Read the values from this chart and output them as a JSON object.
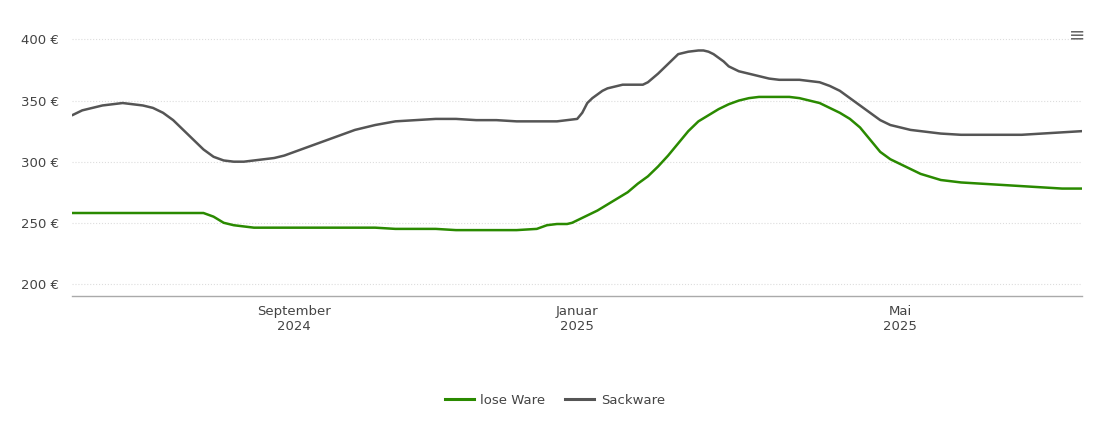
{
  "background_color": "#ffffff",
  "plot_bg_color": "#ffffff",
  "grid_color": "#dddddd",
  "line_lose_color": "#2a8a00",
  "line_sack_color": "#555555",
  "yticks": [
    200,
    250,
    300,
    350,
    400
  ],
  "xtick_labels": [
    [
      "September\n2024",
      0.22
    ],
    [
      "Januar\n2025",
      0.5
    ],
    [
      "Mai\n2025",
      0.82
    ]
  ],
  "legend_labels": [
    "lose Ware",
    "Sackware"
  ],
  "xlim": [
    0.0,
    1.0
  ],
  "ylim": [
    190,
    415
  ],
  "lose_x": [
    0.0,
    0.01,
    0.02,
    0.04,
    0.06,
    0.08,
    0.1,
    0.13,
    0.14,
    0.15,
    0.16,
    0.17,
    0.18,
    0.19,
    0.2,
    0.21,
    0.22,
    0.24,
    0.26,
    0.28,
    0.3,
    0.32,
    0.34,
    0.36,
    0.38,
    0.4,
    0.42,
    0.44,
    0.46,
    0.47,
    0.48,
    0.49,
    0.495,
    0.5,
    0.51,
    0.52,
    0.53,
    0.54,
    0.55,
    0.56,
    0.57,
    0.58,
    0.59,
    0.6,
    0.61,
    0.62,
    0.63,
    0.64,
    0.65,
    0.66,
    0.67,
    0.68,
    0.69,
    0.7,
    0.71,
    0.72,
    0.73,
    0.74,
    0.75,
    0.76,
    0.77,
    0.78,
    0.79,
    0.8,
    0.81,
    0.82,
    0.83,
    0.84,
    0.86,
    0.88,
    0.9,
    0.92,
    0.94,
    0.96,
    0.98,
    1.0
  ],
  "lose_y": [
    258,
    258,
    258,
    258,
    258,
    258,
    258,
    258,
    255,
    250,
    248,
    247,
    246,
    246,
    246,
    246,
    246,
    246,
    246,
    246,
    246,
    245,
    245,
    245,
    244,
    244,
    244,
    244,
    245,
    248,
    249,
    249,
    250,
    252,
    256,
    260,
    265,
    270,
    275,
    282,
    288,
    296,
    305,
    315,
    325,
    333,
    338,
    343,
    347,
    350,
    352,
    353,
    353,
    353,
    353,
    352,
    350,
    348,
    344,
    340,
    335,
    328,
    318,
    308,
    302,
    298,
    294,
    290,
    285,
    283,
    282,
    281,
    280,
    279,
    278,
    278
  ],
  "sack_x": [
    0.0,
    0.01,
    0.02,
    0.03,
    0.04,
    0.05,
    0.06,
    0.07,
    0.08,
    0.09,
    0.1,
    0.11,
    0.12,
    0.13,
    0.14,
    0.15,
    0.16,
    0.17,
    0.18,
    0.19,
    0.2,
    0.21,
    0.22,
    0.24,
    0.26,
    0.28,
    0.3,
    0.32,
    0.34,
    0.36,
    0.38,
    0.4,
    0.42,
    0.44,
    0.46,
    0.48,
    0.49,
    0.5,
    0.505,
    0.51,
    0.515,
    0.52,
    0.525,
    0.53,
    0.535,
    0.54,
    0.545,
    0.55,
    0.555,
    0.56,
    0.565,
    0.57,
    0.58,
    0.59,
    0.6,
    0.61,
    0.62,
    0.625,
    0.63,
    0.635,
    0.64,
    0.645,
    0.65,
    0.66,
    0.67,
    0.68,
    0.69,
    0.7,
    0.71,
    0.72,
    0.73,
    0.74,
    0.75,
    0.76,
    0.77,
    0.78,
    0.79,
    0.8,
    0.81,
    0.82,
    0.83,
    0.84,
    0.86,
    0.88,
    0.9,
    0.92,
    0.94,
    0.96,
    0.98,
    1.0
  ],
  "sack_y": [
    338,
    342,
    344,
    346,
    347,
    348,
    347,
    346,
    344,
    340,
    334,
    326,
    318,
    310,
    304,
    301,
    300,
    300,
    301,
    302,
    303,
    305,
    308,
    314,
    320,
    326,
    330,
    333,
    334,
    335,
    335,
    334,
    334,
    333,
    333,
    333,
    334,
    335,
    340,
    348,
    352,
    355,
    358,
    360,
    361,
    362,
    363,
    363,
    363,
    363,
    363,
    365,
    372,
    380,
    388,
    390,
    391,
    391,
    390,
    388,
    385,
    382,
    378,
    374,
    372,
    370,
    368,
    367,
    367,
    367,
    366,
    365,
    362,
    358,
    352,
    346,
    340,
    334,
    330,
    328,
    326,
    325,
    323,
    322,
    322,
    322,
    322,
    323,
    324,
    325
  ]
}
